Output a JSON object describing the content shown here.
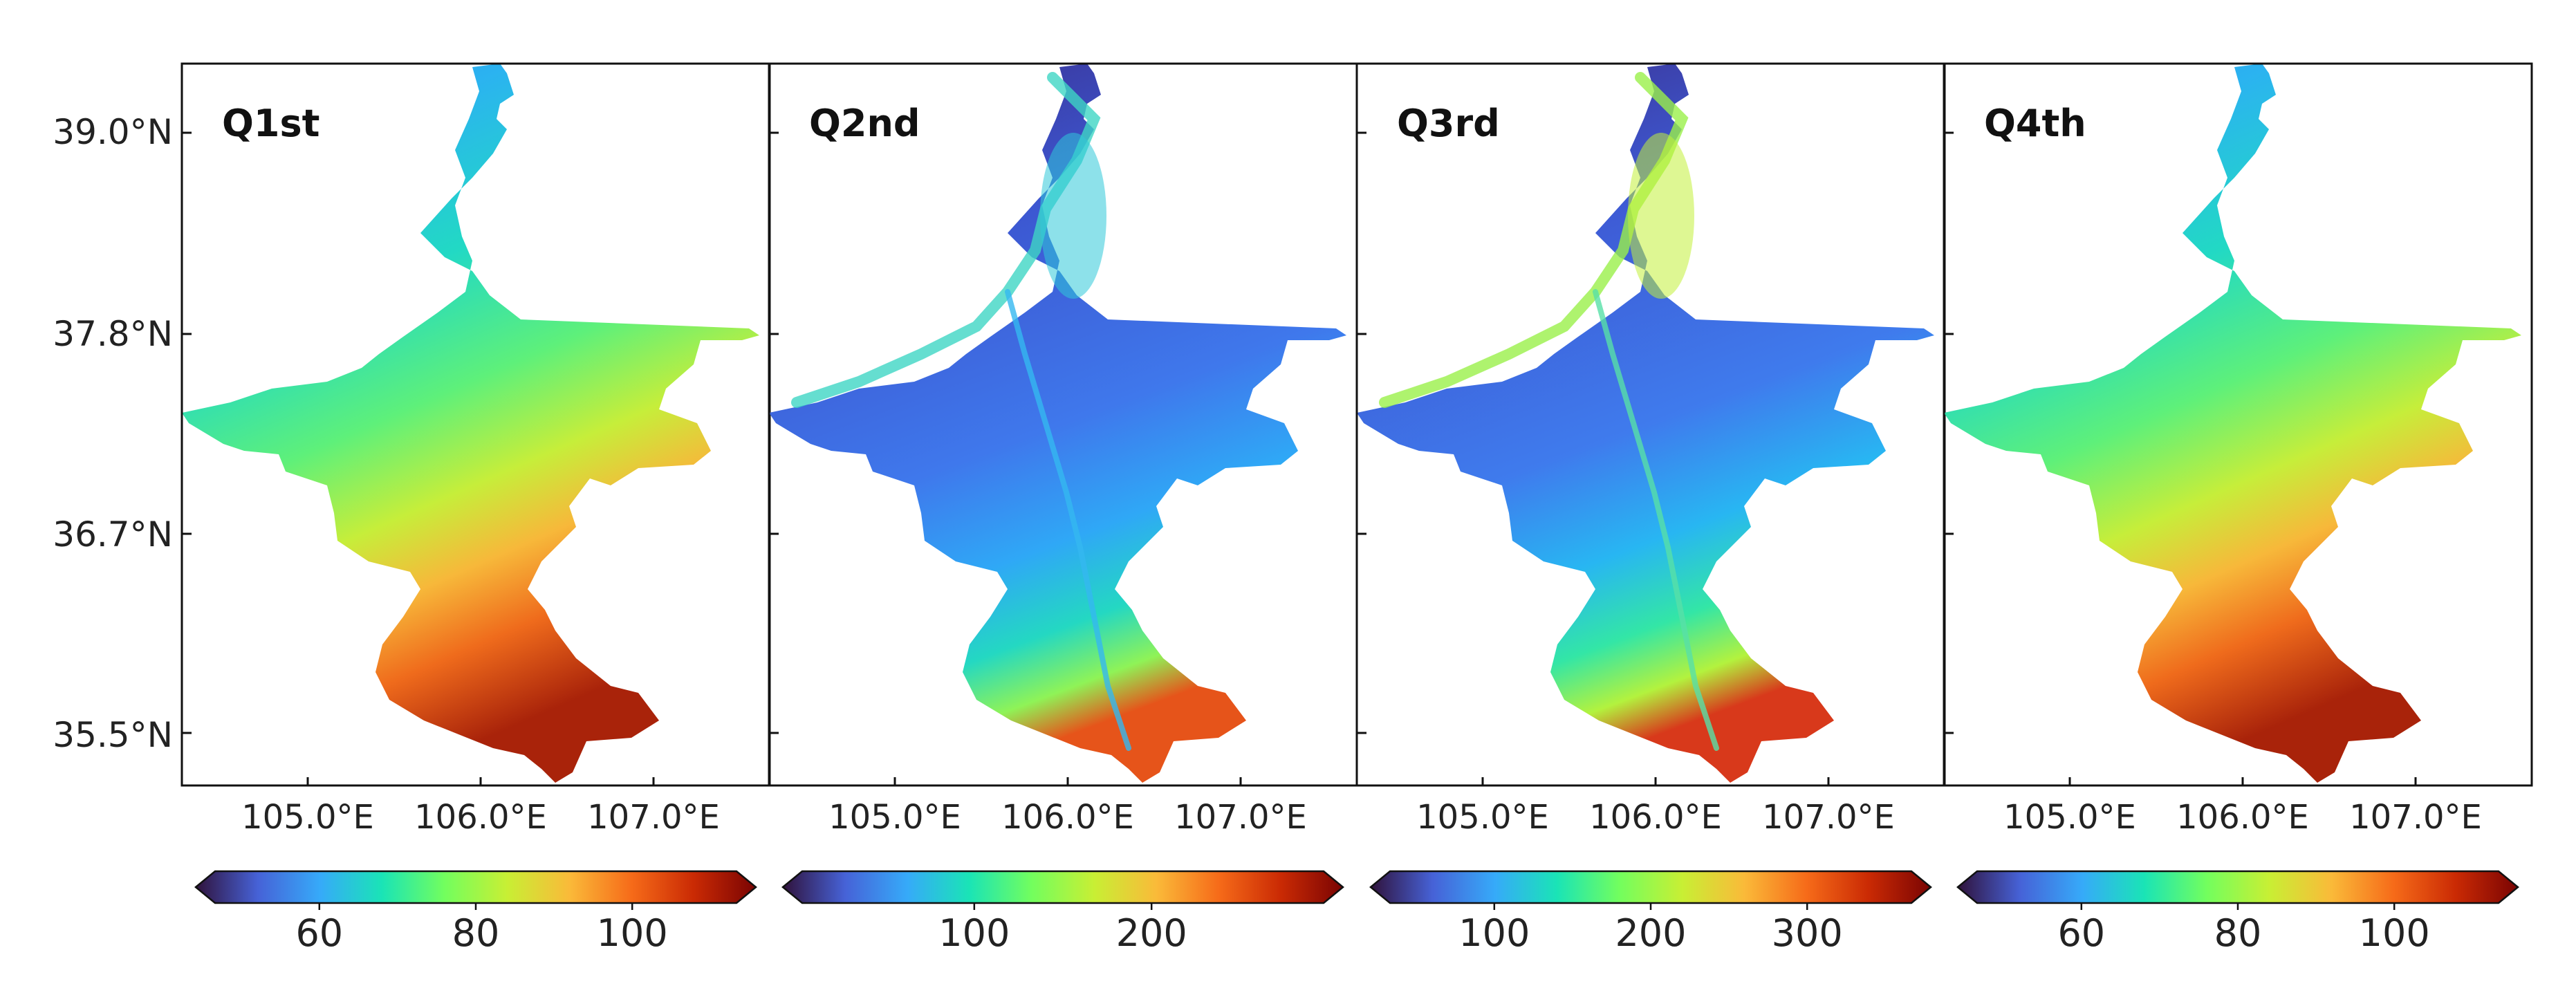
{
  "latitude_labels": [
    "39.0°N",
    "37.8°N",
    "36.7°N",
    "35.5°N"
  ],
  "longitude_labels": [
    "105.0°E",
    "106.0°E",
    "107.0°E"
  ],
  "colormap": [
    "#30123b",
    "#4662d7",
    "#36aaf9",
    "#1ae4b6",
    "#72fe5e",
    "#c8ef34",
    "#faba39",
    "#f66b19",
    "#ca2a04",
    "#7a0403"
  ],
  "panels": [
    {
      "id": "q1",
      "title": "Q1st",
      "colorbar_ticks": [
        "60",
        "80",
        "100"
      ],
      "scheme": "seasonal"
    },
    {
      "id": "q2",
      "title": "Q2nd",
      "colorbar_ticks": [
        "100",
        "200"
      ],
      "scheme": "river"
    },
    {
      "id": "q3",
      "title": "Q3rd",
      "colorbar_ticks": [
        "100",
        "200",
        "300"
      ],
      "scheme": "river-strong"
    },
    {
      "id": "q4",
      "title": "Q4th",
      "colorbar_ticks": [
        "60",
        "80",
        "100"
      ],
      "scheme": "seasonal"
    }
  ]
}
